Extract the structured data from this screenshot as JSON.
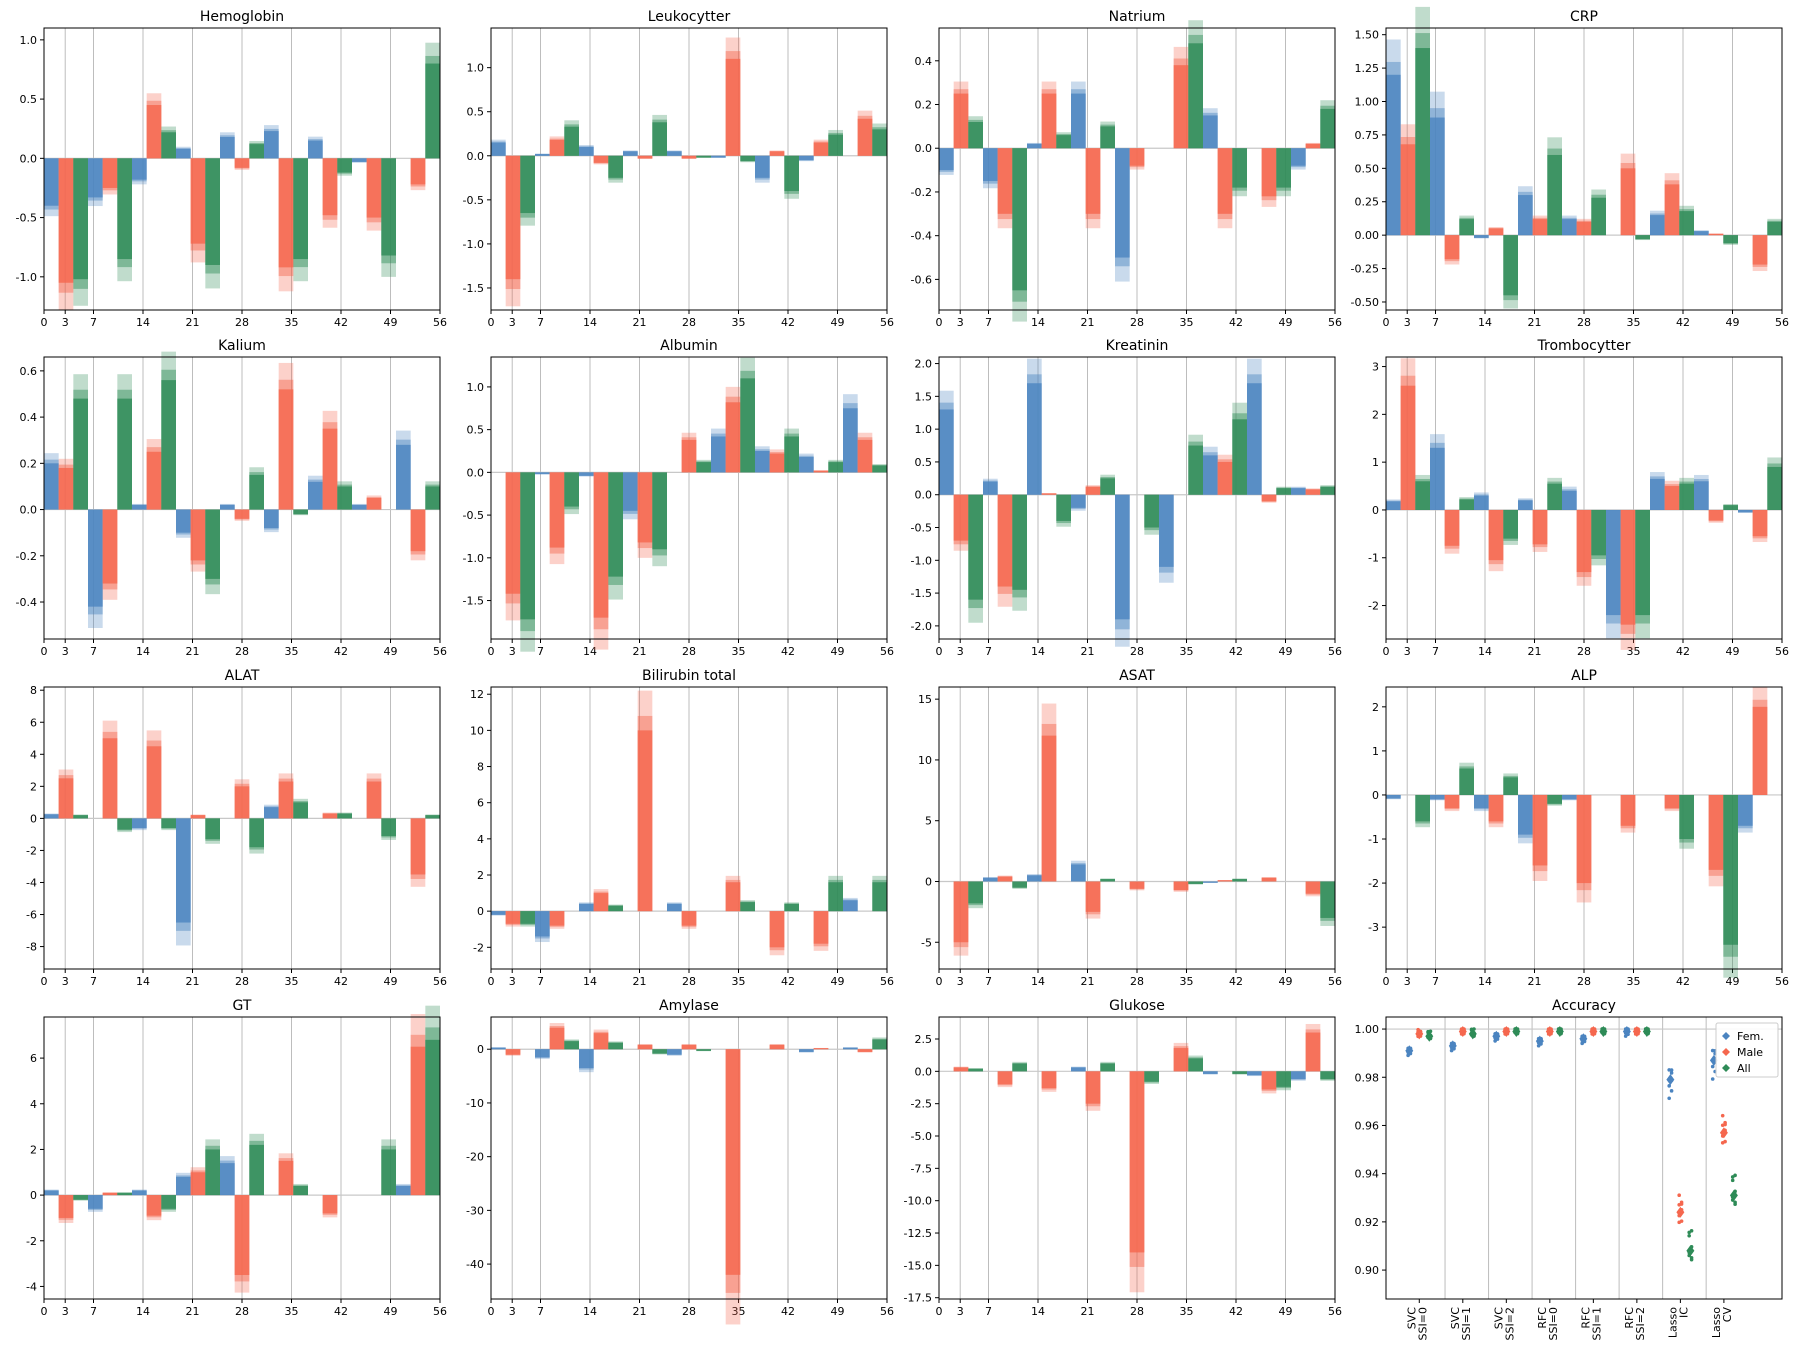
{
  "colors": {
    "fem": "#4b84c0",
    "male": "#f5674e",
    "all": "#2e8b57"
  },
  "x_ticks": [
    "0",
    "3",
    "7",
    "14",
    "21",
    "28",
    "35",
    "42",
    "49",
    "56"
  ],
  "chart_data": [
    {
      "type": "bar",
      "title": "Hemoglobin",
      "ylim": [
        -1.28,
        1.1
      ],
      "yticks": [
        "1.0",
        "0.5",
        "0.0",
        "-0.5",
        "-1.0"
      ],
      "ytick_values": [
        1,
        0.5,
        0,
        -0.5,
        -1
      ],
      "series": [
        {
          "name": "Fem.",
          "values": [
            -0.4,
            -0.33,
            -0.18,
            0.08,
            0.18,
            0.23,
            0.15,
            -0.03,
            0
          ]
        },
        {
          "name": "Male",
          "values": [
            -1.05,
            -0.25,
            0.45,
            -0.72,
            -0.08,
            -0.92,
            -0.48,
            -0.5,
            -0.22
          ]
        },
        {
          "name": "All",
          "values": [
            -1.02,
            -0.85,
            0.22,
            -0.9,
            0.12,
            -0.85,
            -0.12,
            -0.82,
            0.8
          ]
        }
      ]
    },
    {
      "type": "bar",
      "title": "Leukocytter",
      "ylim": [
        -1.75,
        1.45
      ],
      "yticks": [
        "1.0",
        "0.5",
        "0.0",
        "-0.5",
        "-1.0",
        "-1.5"
      ],
      "ytick_values": [
        1,
        0.5,
        0,
        -0.5,
        -1,
        -1.5
      ],
      "series": [
        {
          "name": "Fem.",
          "values": [
            0.15,
            0.02,
            0.1,
            0.05,
            0.05,
            -0.02,
            -0.25,
            -0.05,
            0
          ]
        },
        {
          "name": "Male",
          "values": [
            -1.4,
            0.18,
            -0.08,
            -0.03,
            -0.03,
            1.1,
            0.05,
            0.15,
            0.42
          ]
        },
        {
          "name": "All",
          "values": [
            -0.65,
            0.33,
            -0.25,
            0.38,
            -0.02,
            -0.06,
            -0.4,
            0.24,
            0.3
          ]
        }
      ]
    },
    {
      "type": "bar",
      "title": "Natrium",
      "ylim": [
        -0.74,
        0.55
      ],
      "yticks": [
        "0.4",
        "0.2",
        "0.0",
        "-0.2",
        "-0.4",
        "-0.6"
      ],
      "ytick_values": [
        0.4,
        0.2,
        0,
        -0.2,
        -0.4,
        -0.6
      ],
      "series": [
        {
          "name": "Fem.",
          "values": [
            -0.1,
            -0.15,
            0.02,
            0.25,
            -0.5,
            0.0,
            0.15,
            0.0,
            -0.08
          ]
        },
        {
          "name": "Male",
          "values": [
            0.25,
            -0.3,
            0.25,
            -0.3,
            -0.08,
            0.38,
            -0.3,
            -0.22,
            0.02
          ]
        },
        {
          "name": "All",
          "values": [
            0.12,
            -0.65,
            0.06,
            0.1,
            0.0,
            0.48,
            -0.18,
            -0.18,
            0.18
          ]
        }
      ]
    },
    {
      "type": "bar",
      "title": "CRP",
      "ylim": [
        -0.56,
        1.55
      ],
      "yticks": [
        "1.50",
        "1.25",
        "1.00",
        "0.75",
        "0.50",
        "0.25",
        "0.00",
        "-0.25",
        "-0.50"
      ],
      "ytick_values": [
        1.5,
        1.25,
        1,
        0.75,
        0.5,
        0.25,
        0,
        -0.25,
        -0.5
      ],
      "series": [
        {
          "name": "Fem.",
          "values": [
            1.2,
            0.88,
            -0.02,
            0.3,
            0.12,
            0.0,
            0.15,
            0.03,
            0
          ]
        },
        {
          "name": "Male",
          "values": [
            0.68,
            -0.18,
            0.05,
            0.12,
            0.1,
            0.5,
            0.38,
            0.01,
            -0.22
          ]
        },
        {
          "name": "All",
          "values": [
            1.4,
            0.12,
            -0.45,
            0.6,
            0.28,
            -0.03,
            0.18,
            -0.06,
            0.1
          ]
        }
      ]
    },
    {
      "type": "bar",
      "title": "Kalium",
      "ylim": [
        -0.56,
        0.66
      ],
      "yticks": [
        "0.6",
        "0.4",
        "0.2",
        "0.0",
        "-0.2",
        "-0.4"
      ],
      "ytick_values": [
        0.6,
        0.4,
        0.2,
        0,
        -0.2,
        -0.4
      ],
      "series": [
        {
          "name": "Fem.",
          "values": [
            0.2,
            -0.42,
            0.02,
            -0.1,
            0.02,
            -0.08,
            0.12,
            0.02,
            0.28
          ]
        },
        {
          "name": "Male",
          "values": [
            0.18,
            -0.32,
            0.25,
            -0.22,
            -0.04,
            0.52,
            0.35,
            0.05,
            -0.18
          ]
        },
        {
          "name": "All",
          "values": [
            0.48,
            0.48,
            0.56,
            -0.3,
            0.15,
            -0.02,
            0.1,
            0.0,
            0.1
          ]
        }
      ]
    },
    {
      "type": "bar",
      "title": "Albumin",
      "ylim": [
        -1.95,
        1.35
      ],
      "yticks": [
        "1.0",
        "0.5",
        "0.0",
        "-0.5",
        "-1.0",
        "-1.5"
      ],
      "ytick_values": [
        1,
        0.5,
        0,
        -0.5,
        -1,
        -1.5
      ],
      "series": [
        {
          "name": "Fem.",
          "values": [
            0,
            -0.02,
            -0.04,
            -0.45,
            0,
            0.42,
            0.25,
            0.18,
            0.75
          ]
        },
        {
          "name": "Male",
          "values": [
            -1.42,
            -0.88,
            -1.7,
            -0.82,
            0.38,
            0.82,
            0.22,
            0.02,
            0.38
          ]
        },
        {
          "name": "All",
          "values": [
            -1.72,
            -0.4,
            -1.22,
            -0.9,
            0.12,
            1.1,
            0.42,
            0.12,
            0.08
          ]
        }
      ]
    },
    {
      "type": "bar",
      "title": "Kreatinin",
      "ylim": [
        -2.2,
        2.1
      ],
      "yticks": [
        "2.0",
        "1.5",
        "1.0",
        "0.5",
        "0.0",
        "-0.5",
        "-1.0",
        "-1.5",
        "-2.0"
      ],
      "ytick_values": [
        2,
        1.5,
        1,
        0.5,
        0,
        -0.5,
        -1,
        -1.5,
        -2
      ],
      "series": [
        {
          "name": "Fem.",
          "values": [
            1.3,
            0.2,
            1.7,
            -0.2,
            -1.9,
            -1.1,
            0.6,
            1.7,
            0.1
          ]
        },
        {
          "name": "Male",
          "values": [
            -0.7,
            -1.4,
            0.02,
            0.12,
            0.0,
            0.0,
            0.5,
            -0.1,
            0.08
          ]
        },
        {
          "name": "All",
          "values": [
            -1.6,
            -1.45,
            -0.4,
            0.25,
            -0.5,
            0.75,
            1.15,
            0.1,
            0.12
          ]
        }
      ]
    },
    {
      "type": "bar",
      "title": "Trombocytter",
      "ylim": [
        -2.7,
        3.2
      ],
      "yticks": [
        "3",
        "2",
        "1",
        "0",
        "-1",
        "-2"
      ],
      "ytick_values": [
        3,
        2,
        1,
        0,
        -1,
        -2
      ],
      "series": [
        {
          "name": "Fem.",
          "values": [
            0.18,
            1.3,
            0.3,
            0.2,
            0.4,
            -2.2,
            0.65,
            0.6,
            -0.05
          ]
        },
        {
          "name": "Male",
          "values": [
            2.6,
            -0.75,
            -1.05,
            -0.72,
            -1.3,
            -2.4,
            0.5,
            -0.22,
            -0.55
          ]
        },
        {
          "name": "All",
          "values": [
            0.6,
            0.22,
            -0.6,
            0.55,
            -0.95,
            -2.2,
            0.55,
            0.1,
            0.9
          ]
        }
      ]
    },
    {
      "type": "bar",
      "title": "ALAT",
      "ylim": [
        -9.4,
        8.2
      ],
      "yticks": [
        "8",
        "6",
        "4",
        "2",
        "0",
        "-2",
        "-4",
        "-6",
        "-8"
      ],
      "ytick_values": [
        8,
        6,
        4,
        2,
        0,
        -2,
        -4,
        -6,
        -8
      ],
      "series": [
        {
          "name": "Fem.",
          "values": [
            0.25,
            0.0,
            -0.6,
            -6.5,
            0.0,
            0.7,
            0.0,
            0.0,
            0.0
          ]
        },
        {
          "name": "Male",
          "values": [
            2.5,
            5.0,
            4.5,
            0.2,
            2.0,
            2.3,
            0.3,
            2.3,
            -3.5
          ]
        },
        {
          "name": "All",
          "values": [
            0.2,
            -0.7,
            -0.6,
            -1.3,
            -1.8,
            1.0,
            0.3,
            -1.1,
            0.2
          ]
        }
      ]
    },
    {
      "type": "bar",
      "title": "Bilirubin total",
      "ylim": [
        -3.2,
        12.4
      ],
      "yticks": [
        "12",
        "10",
        "8",
        "6",
        "4",
        "2",
        "0",
        "-2"
      ],
      "ytick_values": [
        12,
        10,
        8,
        6,
        4,
        2,
        0,
        -2
      ],
      "series": [
        {
          "name": "Fem.",
          "values": [
            -0.2,
            -1.4,
            0.4,
            0.0,
            0.4,
            0.0,
            0.0,
            0.0,
            0.6
          ]
        },
        {
          "name": "Male",
          "values": [
            -0.7,
            -0.8,
            1.0,
            10.0,
            -0.8,
            1.6,
            -2.0,
            -1.8,
            0.0
          ]
        },
        {
          "name": "All",
          "values": [
            -0.7,
            0.0,
            0.3,
            0.0,
            0.0,
            0.5,
            0.4,
            1.6,
            1.6
          ]
        }
      ]
    },
    {
      "type": "bar",
      "title": "ASAT",
      "ylim": [
        -7.2,
        16.0
      ],
      "yticks": [
        "15",
        "10",
        "5",
        "0",
        "-5"
      ],
      "ytick_values": [
        15,
        10,
        5,
        0,
        -5
      ],
      "series": [
        {
          "name": "Fem.",
          "values": [
            0.0,
            0.3,
            0.5,
            1.4,
            0.0,
            0.0,
            -0.1,
            0.0,
            0.0
          ]
        },
        {
          "name": "Male",
          "values": [
            -5.0,
            0.4,
            12.0,
            -2.5,
            -0.6,
            -0.7,
            0.1,
            0.3,
            -1.0
          ]
        },
        {
          "name": "All",
          "values": [
            -1.8,
            -0.5,
            0.0,
            0.2,
            0.0,
            -0.2,
            0.2,
            0.0,
            -3.0
          ]
        }
      ]
    },
    {
      "type": "bar",
      "title": "ALP",
      "ylim": [
        -3.95,
        2.45
      ],
      "yticks": [
        "2",
        "1",
        "0",
        "-1",
        "-2",
        "-3"
      ],
      "ytick_values": [
        2,
        1,
        0,
        -1,
        -2,
        -3
      ],
      "series": [
        {
          "name": "Fem.",
          "values": [
            -0.08,
            -0.1,
            -0.3,
            -0.9,
            -0.1,
            0.0,
            0.0,
            0.0,
            -0.7
          ]
        },
        {
          "name": "Male",
          "values": [
            0.0,
            -0.3,
            -0.6,
            -1.6,
            -2.0,
            -0.7,
            -0.3,
            -1.7,
            2.0
          ]
        },
        {
          "name": "All",
          "values": [
            -0.6,
            0.6,
            0.4,
            -0.2,
            0.0,
            0.0,
            -1.0,
            -3.4,
            0.0
          ]
        }
      ]
    },
    {
      "type": "bar",
      "title": "GT",
      "ylim": [
        -4.55,
        7.8
      ],
      "yticks": [
        "6",
        "4",
        "2",
        "0",
        "-2",
        "-4"
      ],
      "ytick_values": [
        6,
        4,
        2,
        0,
        -2,
        -4
      ],
      "series": [
        {
          "name": "Fem.",
          "values": [
            0.2,
            -0.6,
            0.2,
            0.8,
            1.4,
            0.0,
            0.0,
            0.0,
            0.4
          ]
        },
        {
          "name": "Male",
          "values": [
            -1.0,
            0.1,
            -0.9,
            1.0,
            -3.5,
            1.5,
            -0.8,
            0.0,
            6.5
          ]
        },
        {
          "name": "All",
          "values": [
            -0.2,
            0.1,
            -0.6,
            2.0,
            2.2,
            0.4,
            0.0,
            2.0,
            6.8
          ]
        }
      ]
    },
    {
      "type": "bar",
      "title": "Amylase",
      "ylim": [
        -46.5,
        6.0
      ],
      "yticks": [
        "0",
        "-10",
        "-20",
        "-30",
        "-40"
      ],
      "ytick_values": [
        0,
        -10,
        -20,
        -30,
        -40
      ],
      "series": [
        {
          "name": "Fem.",
          "values": [
            0.3,
            -1.5,
            -3.5,
            0.0,
            -1.0,
            0.0,
            0.0,
            -0.5,
            0.3
          ]
        },
        {
          "name": "Male",
          "values": [
            -1.0,
            4.0,
            3.0,
            0.8,
            0.8,
            -42.0,
            0.8,
            0.2,
            -0.5
          ]
        },
        {
          "name": "All",
          "values": [
            0.0,
            1.5,
            1.2,
            -0.8,
            -0.3,
            0.0,
            0.0,
            0.0,
            1.8
          ]
        }
      ]
    },
    {
      "type": "bar",
      "title": "Glukose",
      "ylim": [
        -17.6,
        4.2
      ],
      "yticks": [
        "2.5",
        "0.0",
        "-2.5",
        "-5.0",
        "-7.5",
        "-10.0",
        "-12.5",
        "-15.0",
        "-17.5"
      ],
      "ytick_values": [
        2.5,
        0,
        -2.5,
        -5,
        -7.5,
        -10,
        -12.5,
        -15,
        -17.5
      ],
      "series": [
        {
          "name": "Fem.",
          "values": [
            0.0,
            0.0,
            0.0,
            0.3,
            0.0,
            0.0,
            -0.2,
            -0.3,
            -0.6
          ]
        },
        {
          "name": "Male",
          "values": [
            0.3,
            -1.0,
            -1.3,
            -2.5,
            -14.0,
            1.8,
            0.0,
            -1.4,
            3.0
          ]
        },
        {
          "name": "All",
          "values": [
            0.2,
            0.6,
            0.0,
            0.6,
            -0.8,
            1.0,
            -0.2,
            -1.2,
            -0.6
          ]
        }
      ]
    },
    {
      "type": "scatter",
      "title": "Accuracy",
      "ylim": [
        0.888,
        1.005
      ],
      "yticks": [
        "1.00",
        "0.98",
        "0.96",
        "0.94",
        "0.92",
        "0.90"
      ],
      "ytick_values": [
        1.0,
        0.98,
        0.96,
        0.94,
        0.92,
        0.9
      ],
      "categories": [
        [
          "SVC",
          "SSI=0"
        ],
        [
          "SVC",
          "SSI=1"
        ],
        [
          "SVC",
          "SSI=2"
        ],
        [
          "RFC",
          "SSI=0"
        ],
        [
          "RFC",
          "SSI=1"
        ],
        [
          "RFC",
          "SSI=2"
        ],
        [
          "Lasso",
          "IC"
        ],
        [
          "Lasso",
          "CV"
        ]
      ],
      "legend": [
        "Fem.",
        "Male",
        "All"
      ],
      "legend_position": "top-right",
      "series": [
        {
          "name": "Fem.",
          "values": [
            0.991,
            0.993,
            0.997,
            0.995,
            0.996,
            0.999,
            0.979,
            0.987
          ]
        },
        {
          "name": "Male",
          "values": [
            0.998,
            0.999,
            0.999,
            0.999,
            0.999,
            0.999,
            0.924,
            0.957
          ]
        },
        {
          "name": "All",
          "values": [
            0.997,
            0.998,
            0.999,
            0.999,
            0.999,
            0.999,
            0.908,
            0.931
          ]
        }
      ]
    }
  ]
}
